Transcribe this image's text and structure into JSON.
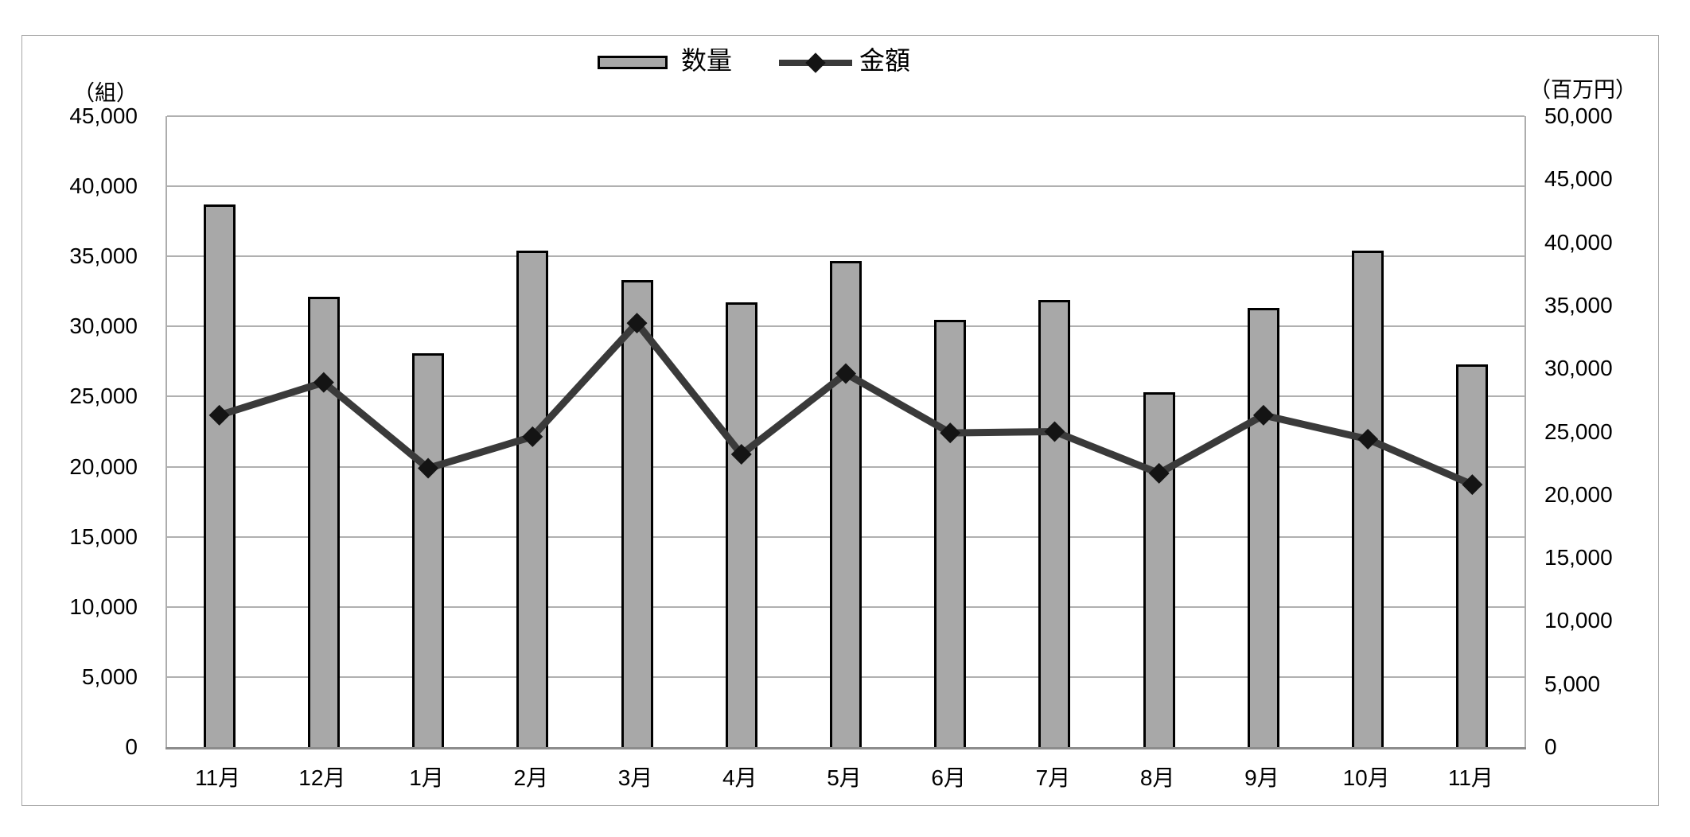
{
  "figure": {
    "background": "#ffffff",
    "border_color": "#a6a6a6"
  },
  "legend": {
    "position": "top",
    "items": [
      {
        "label": "数量",
        "type": "bar",
        "swatch_fill": "#a8a8a8",
        "swatch_border": "#000000"
      },
      {
        "label": "金額",
        "type": "line",
        "line_color": "#3a3a3a",
        "marker": "diamond",
        "marker_color": "#141414"
      }
    ]
  },
  "chart_data": {
    "type": "bar+line",
    "title": "",
    "categories": [
      "11月",
      "12月",
      "1月",
      "2月",
      "3月",
      "4月",
      "5月",
      "6月",
      "7月",
      "8月",
      "9月",
      "10月",
      "11月"
    ],
    "series": [
      {
        "name": "数量",
        "chart_type": "bar",
        "axis": "left",
        "unit": "組",
        "values": [
          38700,
          32100,
          28100,
          35400,
          33300,
          31700,
          34700,
          30500,
          31900,
          25300,
          31300,
          35400,
          27300
        ]
      },
      {
        "name": "金額",
        "chart_type": "line",
        "axis": "right",
        "unit": "百万円",
        "values": [
          26300,
          28900,
          22100,
          24600,
          33600,
          23200,
          29600,
          24900,
          25000,
          21700,
          26300,
          24400,
          20800
        ]
      }
    ],
    "left_axis": {
      "unit_label": "（組）",
      "min": 0,
      "max": 45000,
      "step": 5000,
      "ticks": [
        "45,000",
        "40,000",
        "35,000",
        "30,000",
        "25,000",
        "20,000",
        "15,000",
        "10,000",
        "5,000",
        "0"
      ]
    },
    "right_axis": {
      "unit_label": "（百万円）",
      "min": 0,
      "max": 50000,
      "step": 5000,
      "ticks": [
        "50,000",
        "45,000",
        "40,000",
        "35,000",
        "30,000",
        "25,000",
        "20,000",
        "15,000",
        "10,000",
        "5,000",
        "0"
      ]
    },
    "x_axis": {
      "labels": [
        "11月",
        "12月",
        "1月",
        "2月",
        "3月",
        "4月",
        "5月",
        "6月",
        "7月",
        "8月",
        "9月",
        "10月",
        "11月"
      ]
    },
    "grid": true,
    "legend_position": "top",
    "colors": {
      "bar_fill": "#a8a8a8",
      "bar_border": "#000000",
      "line": "#3a3a3a",
      "marker": "#141414",
      "gridline": "#b0b0b0",
      "axis_line": "#8c8c8c",
      "text": "#000000"
    }
  }
}
